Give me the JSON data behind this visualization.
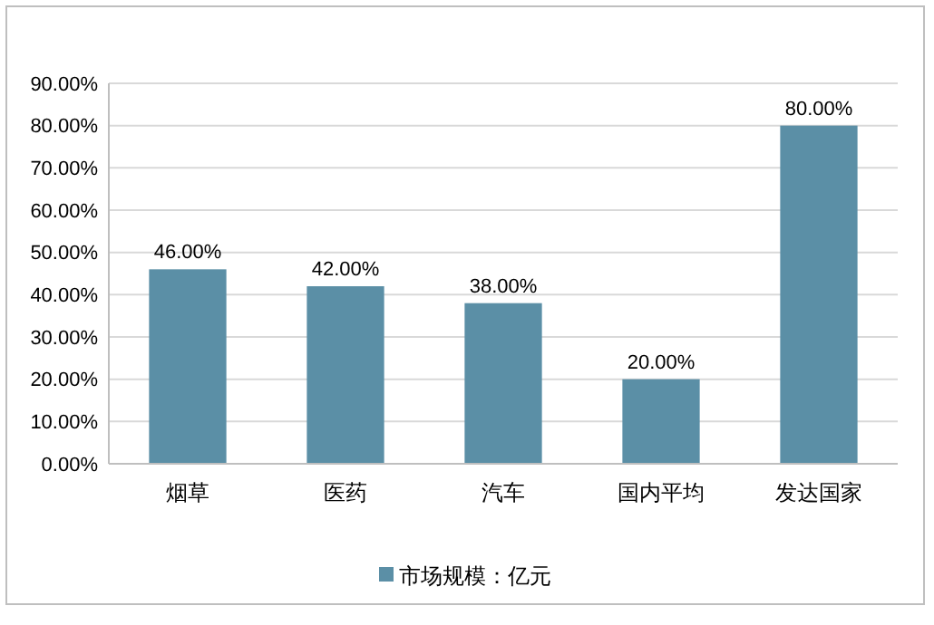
{
  "chart_data": {
    "type": "bar",
    "categories": [
      "烟草",
      "医药",
      "汽车",
      "国内平均",
      "发达国家"
    ],
    "series": [
      {
        "name": "市场规模：亿元",
        "color": "#5b8fa6",
        "values": [
          46,
          42,
          38,
          20,
          80
        ],
        "value_labels": [
          "46.00%",
          "42.00%",
          "38.00%",
          "20.00%",
          "80.00%"
        ]
      }
    ],
    "ylim": [
      0,
      90
    ],
    "yticks": [
      {
        "value": 0,
        "label": "0.00%"
      },
      {
        "value": 10,
        "label": "10.00%"
      },
      {
        "value": 20,
        "label": "20.00%"
      },
      {
        "value": 30,
        "label": "30.00%"
      },
      {
        "value": 40,
        "label": "40.00%"
      },
      {
        "value": 50,
        "label": "50.00%"
      },
      {
        "value": 60,
        "label": "60.00%"
      },
      {
        "value": 70,
        "label": "70.00%"
      },
      {
        "value": 80,
        "label": "80.00%"
      },
      {
        "value": 90,
        "label": "90.00%"
      }
    ],
    "grid": "y",
    "legend": "bottom"
  }
}
